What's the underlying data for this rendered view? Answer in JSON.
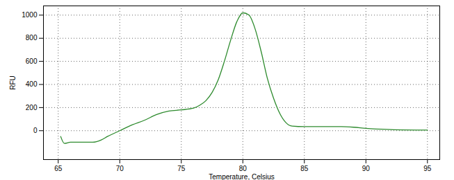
{
  "chart_data": {
    "type": "line",
    "x_label": "Temperature, Celsius",
    "y_label": "RFU",
    "x": [
      65.2,
      65.5,
      66,
      67,
      67.8,
      68.5,
      69,
      70,
      71,
      72,
      73,
      74,
      75,
      76,
      76.5,
      77,
      77.5,
      78,
      78.5,
      79,
      79.5,
      80,
      80.5,
      81,
      81.5,
      82,
      82.5,
      83,
      83.5,
      84,
      85,
      88,
      89,
      90,
      92,
      95
    ],
    "values": [
      -50,
      -110,
      -100,
      -100,
      -100,
      -80,
      -50,
      0,
      50,
      90,
      140,
      170,
      180,
      195,
      220,
      260,
      330,
      440,
      600,
      780,
      940,
      1020,
      1000,
      880,
      680,
      450,
      280,
      150,
      70,
      40,
      35,
      35,
      30,
      20,
      10,
      5
    ],
    "color": "#2e8b2e",
    "xlim": [
      63.8,
      96
    ],
    "ylim": [
      -250,
      1080
    ],
    "xticks": [
      65,
      70,
      75,
      80,
      85,
      90,
      95
    ],
    "yticks": [
      0,
      200,
      400,
      600,
      800,
      1000
    ],
    "grid": true
  }
}
